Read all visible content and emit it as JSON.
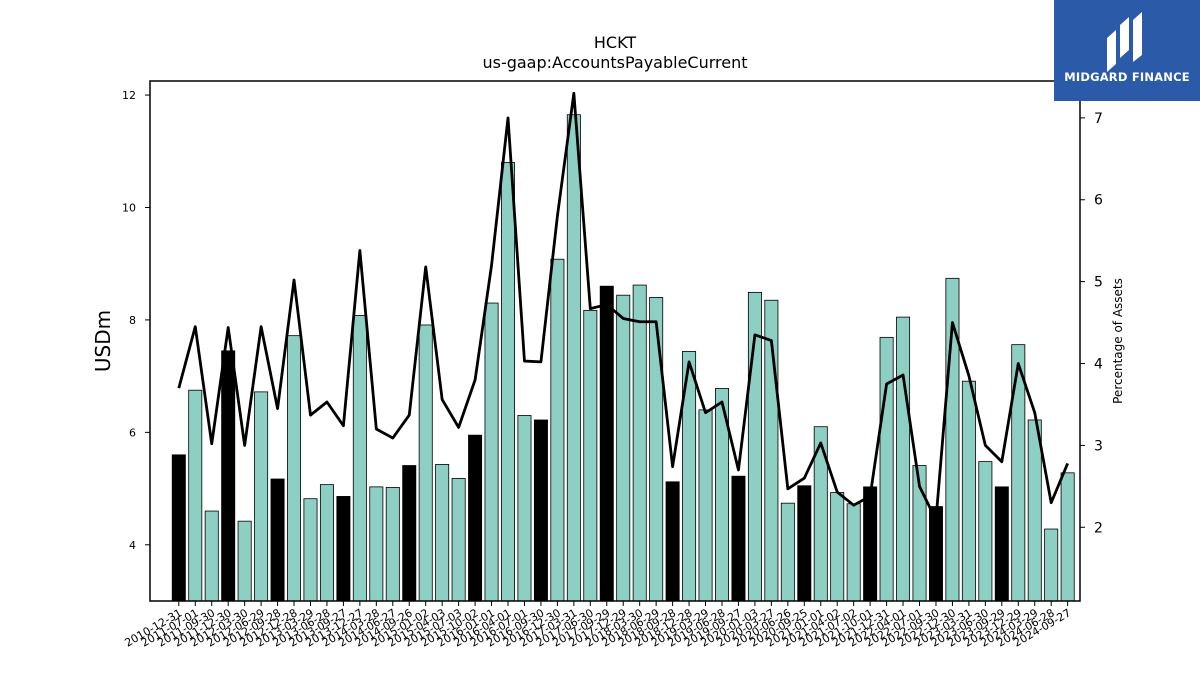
{
  "logo": {
    "text": "MIDGARD FINANCE",
    "icon": "midgard-logo-icon",
    "bg_color": "#2b5aa8"
  },
  "chart_data": {
    "type": "bar",
    "title": "HCKT",
    "subtitle": "us-gaap:AccountsPayableCurrent",
    "ylabel": "USDm",
    "y2label": "Percentage of Assets",
    "ylim": [
      3.0,
      12.25
    ],
    "y2lim": [
      1.1,
      7.45
    ],
    "yticks": [
      4,
      6,
      8,
      10,
      12
    ],
    "y2ticks": [
      2,
      3,
      4,
      5,
      6,
      7
    ],
    "bar_color": "#8ecfc4",
    "fiscal_year_end_color": "#000000",
    "line_color": "#000000",
    "x": [
      "2010-12-31",
      "2011-07-01",
      "2011-09-30",
      "2011-12-30",
      "2012-03-30",
      "2012-06-29",
      "2012-09-28",
      "2012-12-28",
      "2013-03-29",
      "2013-06-28",
      "2013-09-27",
      "2013-12-27",
      "2014-03-28",
      "2014-06-27",
      "2014-09-26",
      "2015-01-02",
      "2015-04-03",
      "2015-07-03",
      "2015-10-02",
      "2016-01-01",
      "2016-04-01",
      "2016-07-01",
      "2016-09-30",
      "2016-12-30",
      "2017-03-31",
      "2017-06-30",
      "2017-09-29",
      "2017-12-29",
      "2018-03-30",
      "2018-06-29",
      "2018-09-28",
      "2018-12-28",
      "2019-03-29",
      "2019-06-28",
      "2019-09-27",
      "2020-01-03",
      "2020-03-27",
      "2020-06-26",
      "2020-09-25",
      "2021-01-01",
      "2021-04-02",
      "2021-07-02",
      "2021-10-01",
      "2021-12-31",
      "2022-04-01",
      "2022-07-01",
      "2022-09-30",
      "2022-12-30",
      "2023-03-31",
      "2023-06-30",
      "2023-09-29",
      "2023-12-29",
      "2024-03-29",
      "2024-06-28",
      "2024-09-27"
    ],
    "xtick_labels": [
      "2010-12-31",
      "2011-07-01",
      "2011-09-30",
      "2011-12-30",
      "2012-03-30",
      "2012-06-29",
      "2012-09-28",
      "2012-12-28",
      "2013-03-29",
      "2013-06-28",
      "2013-09-27",
      "2013-12-27",
      "2014-03-28",
      "2014-06-27",
      "2014-09-26",
      "2015-01-02",
      "2015-04-03",
      "2015-07-03",
      "2015-10-02",
      "2016-01-01",
      "2016-04-01",
      "2016-07-01",
      "2016-09-30",
      "2016-12-30",
      "2017-03-31",
      "2017-06-30",
      "2017-09-29",
      "2017-12-29",
      "2018-03-30",
      "2018-06-29",
      "2018-09-28",
      "2018-12-28",
      "2019-03-29",
      "2019-06-28",
      "2019-09-27",
      "2020-01-03",
      "2020-03-27",
      "2020-06-26",
      "2020-09-25",
      "2021-01-01",
      "2021-04-02",
      "2021-07-02",
      "2021-10-01",
      "2021-12-31",
      "2022-04-01",
      "2022-07-01",
      "2022-09-30",
      "2022-12-30",
      "2023-03-31",
      "2023-06-30",
      "2023-09-29",
      "2023-12-29",
      "2024-03-29",
      "2024-06-28",
      "2024-09-27"
    ],
    "series": [
      {
        "type": "bar",
        "axis": "left",
        "values": [
          5.6,
          6.75,
          4.6,
          7.45,
          4.42,
          6.72,
          5.17,
          7.72,
          4.82,
          5.07,
          4.86,
          8.08,
          5.03,
          5.02,
          5.41,
          7.91,
          5.43,
          5.18,
          5.95,
          8.3,
          10.8,
          6.3,
          6.22,
          9.08,
          11.65,
          8.17,
          8.6,
          8.44,
          8.62,
          8.4,
          5.12,
          7.44,
          6.4,
          6.78,
          5.22,
          8.49,
          8.35,
          4.74,
          5.05,
          6.1,
          4.93,
          4.73,
          5.03,
          7.69,
          8.05,
          5.41,
          4.68,
          8.74,
          6.91,
          5.48,
          5.03,
          7.56,
          6.22,
          4.28,
          5.28
        ],
        "fiscal_year_end": [
          true,
          false,
          false,
          true,
          false,
          false,
          true,
          false,
          false,
          false,
          true,
          false,
          false,
          false,
          true,
          false,
          false,
          false,
          true,
          false,
          false,
          false,
          true,
          false,
          false,
          false,
          true,
          false,
          false,
          false,
          true,
          false,
          false,
          false,
          true,
          false,
          false,
          false,
          true,
          false,
          false,
          false,
          true,
          false,
          false,
          false,
          true,
          false,
          false,
          false,
          true,
          false,
          false,
          false,
          false
        ]
      },
      {
        "type": "line",
        "axis": "right",
        "values": [
          3.7,
          4.45,
          3.02,
          4.44,
          3.0,
          4.45,
          3.45,
          5.02,
          3.37,
          3.53,
          3.24,
          5.38,
          3.2,
          3.09,
          3.37,
          5.18,
          3.56,
          3.22,
          3.8,
          5.2,
          7.0,
          4.03,
          4.02,
          5.8,
          7.3,
          4.67,
          4.72,
          4.55,
          4.51,
          4.51,
          2.74,
          4.02,
          3.4,
          3.53,
          2.7,
          4.35,
          4.28,
          2.47,
          2.6,
          3.03,
          2.43,
          2.27,
          2.38,
          3.75,
          3.86,
          2.5,
          2.09,
          4.5,
          3.85,
          3.0,
          2.8,
          4.0,
          3.4,
          2.3,
          2.78
        ]
      }
    ]
  }
}
